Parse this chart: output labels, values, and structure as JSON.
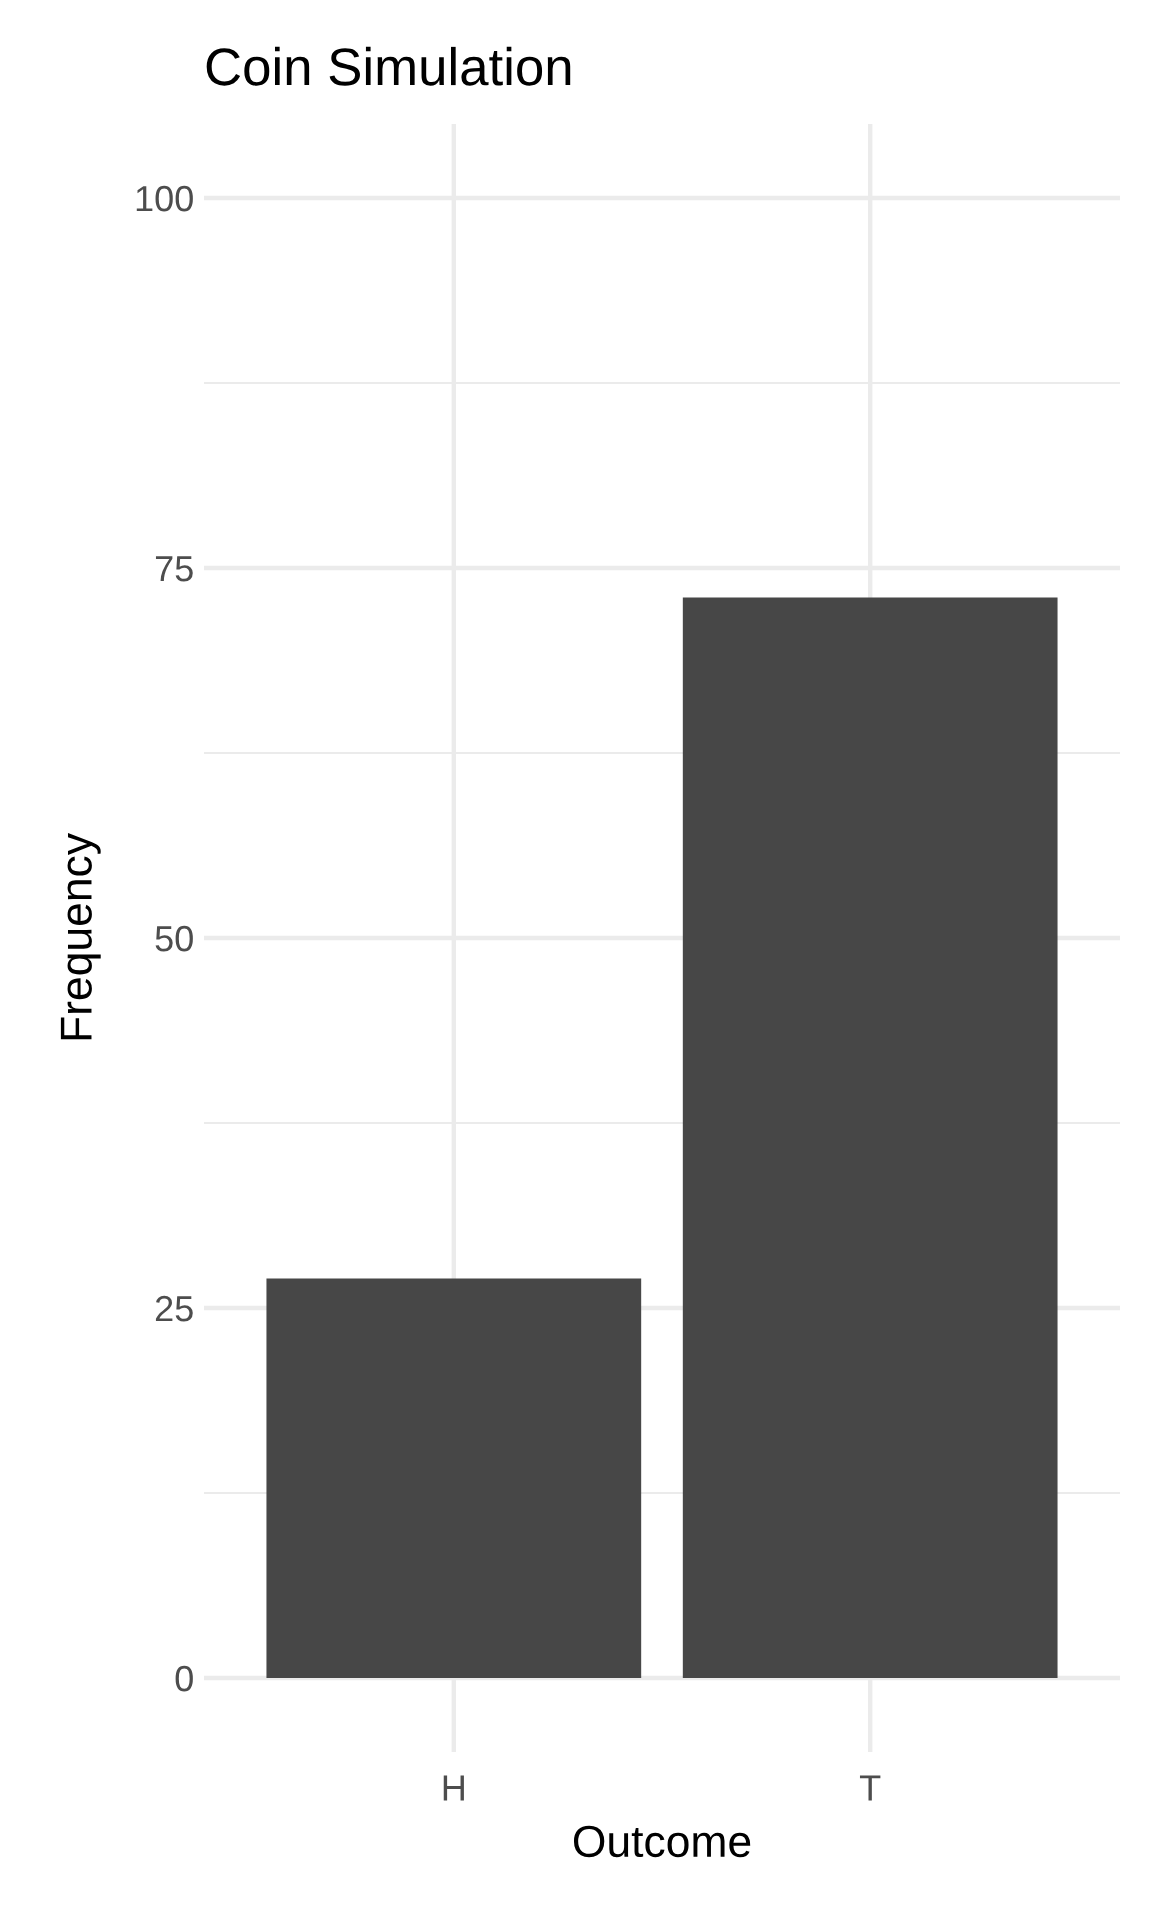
{
  "chart_data": {
    "type": "bar",
    "title": "Coin Simulation",
    "xlabel": "Outcome",
    "ylabel": "Frequency",
    "categories": [
      "H",
      "T"
    ],
    "values": [
      27,
      73
    ],
    "color": "#474747",
    "ylim": [
      -5,
      105
    ],
    "yticks": [
      0,
      {
        "value": 12.5,
        "label": null
      },
      25,
      {
        "value": 37.5,
        "label": null
      },
      50,
      {
        "value": 62.5,
        "label": null
      },
      75,
      {
        "value": 87.5,
        "label": null
      },
      100
    ],
    "grid": true
  }
}
